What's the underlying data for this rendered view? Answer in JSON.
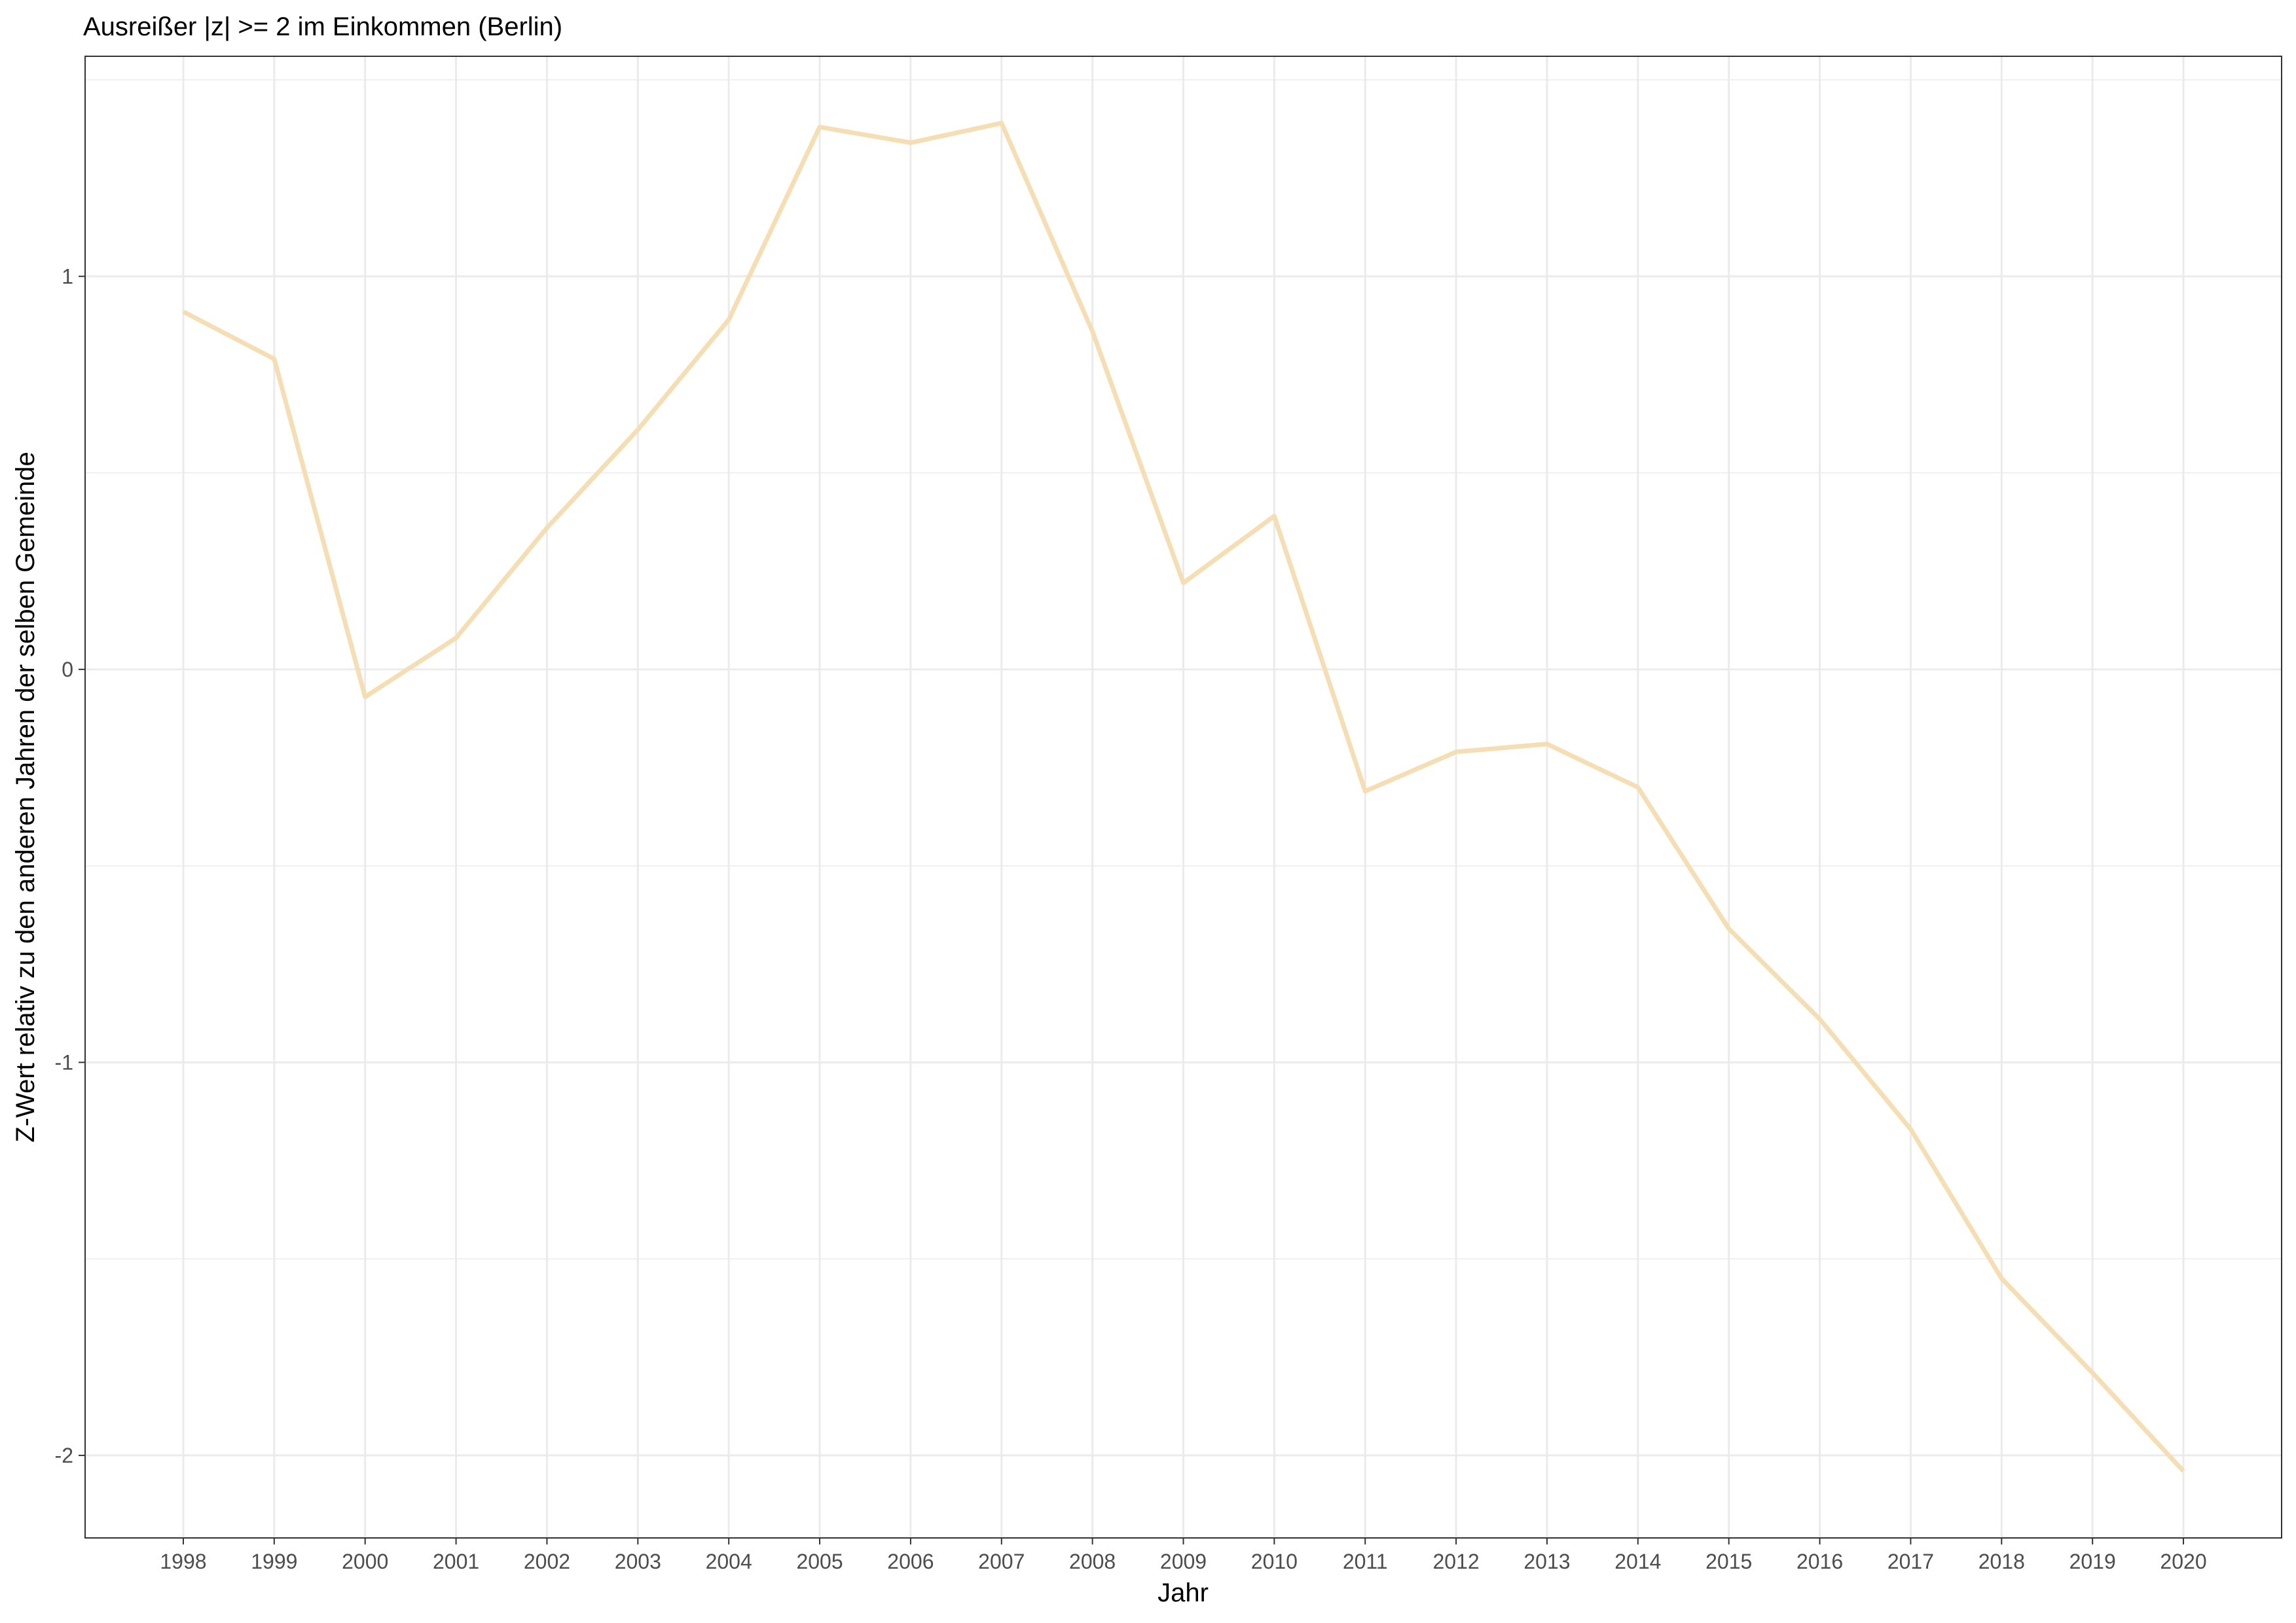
{
  "chart_data": {
    "type": "line",
    "title": "Ausreißer |z| >= 2 im Einkommen (Berlin)",
    "xlabel": "Jahr",
    "ylabel": "Z-Wert relativ zu den anderen Jahren der selben Gemeinde",
    "x": [
      1998,
      1999,
      2000,
      2001,
      2002,
      2003,
      2004,
      2005,
      2006,
      2007,
      2008,
      2009,
      2010,
      2011,
      2012,
      2013,
      2014,
      2015,
      2016,
      2017,
      2018,
      2019,
      2020
    ],
    "x_tick_labels": [
      "1998",
      "1999",
      "2000",
      "2001",
      "2002",
      "2003",
      "2004",
      "2005",
      "2006",
      "2007",
      "2008",
      "2009",
      "2010",
      "2011",
      "2012",
      "2013",
      "2014",
      "2015",
      "2016",
      "2017",
      "2018",
      "2019",
      "2020"
    ],
    "series": [
      {
        "color": "#f5deb3",
        "values": [
          0.91,
          0.79,
          -0.07,
          0.08,
          0.36,
          0.61,
          0.89,
          1.38,
          1.34,
          1.39,
          0.86,
          0.22,
          0.39,
          -0.31,
          -0.21,
          -0.19,
          -0.3,
          -0.66,
          -0.89,
          -1.17,
          -1.55,
          -1.79,
          -2.04
        ]
      }
    ],
    "y_ticks": [
      -2,
      -1,
      0,
      1
    ],
    "y_tick_labels": [
      "-2",
      "-1",
      "0",
      "1"
    ],
    "xlim": [
      1996.92,
      2021.08
    ],
    "ylim": [
      -2.21,
      1.56
    ],
    "grid": true,
    "legend": "none"
  }
}
